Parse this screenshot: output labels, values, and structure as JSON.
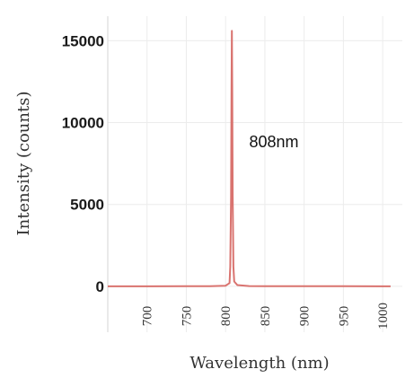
{
  "chart_data": {
    "type": "line",
    "title": "",
    "xlabel": "Wavelength (nm)",
    "ylabel": "Intensity (counts)",
    "xlim": [
      650,
      1025
    ],
    "ylim": [
      -2800,
      16500
    ],
    "x_ticks": [
      700,
      750,
      800,
      850,
      900,
      950,
      1000
    ],
    "y_ticks": [
      0,
      5000,
      10000,
      15000
    ],
    "grid": true,
    "legend": "none",
    "annotation": {
      "text": "808nm",
      "x": 830,
      "y": 8500
    },
    "series": [
      {
        "color": "#d9736f",
        "x": [
          650,
          700,
          750,
          780,
          800,
          805,
          806,
          807,
          807.5,
          808,
          808.5,
          809,
          810,
          811,
          815,
          830,
          850,
          900,
          950,
          1000,
          1010
        ],
        "y": [
          0,
          0,
          5,
          10,
          40,
          200,
          1200,
          5500,
          12000,
          15600,
          12000,
          5500,
          1200,
          300,
          80,
          20,
          10,
          5,
          5,
          0,
          0
        ]
      }
    ]
  }
}
